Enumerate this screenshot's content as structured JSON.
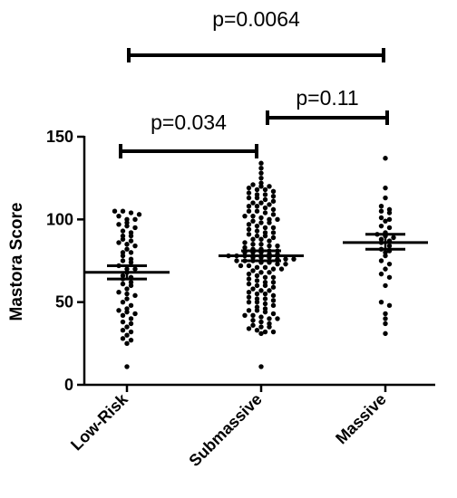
{
  "chart_data": {
    "type": "scatter",
    "ylabel": "Mastora Score",
    "ylim": [
      0,
      150
    ],
    "yticks": [
      0,
      50,
      100,
      150
    ],
    "categories": [
      "Low-Risk",
      "Submassive",
      "Massive"
    ],
    "groups": [
      {
        "name": "Low-Risk",
        "mean": 68,
        "sem_low": 64,
        "sem_high": 72,
        "values": [
          105,
          105,
          104,
          103,
          102,
          100,
          100,
          98,
          97,
          96,
          95,
          93,
          92,
          90,
          90,
          88,
          87,
          86,
          85,
          84,
          82,
          80,
          80,
          78,
          76,
          75,
          74,
          72,
          70,
          70,
          68,
          66,
          65,
          64,
          62,
          61,
          60,
          58,
          56,
          55,
          54,
          52,
          50,
          48,
          46,
          45,
          44,
          43,
          42,
          40,
          38,
          37,
          35,
          33,
          32,
          30,
          28,
          27,
          25,
          11
        ]
      },
      {
        "name": "Submassive",
        "mean": 78,
        "sem_low": 75,
        "sem_high": 81,
        "values": [
          134,
          131,
          128,
          125,
          122,
          121,
          120,
          120,
          119,
          118,
          118,
          117,
          116,
          115,
          115,
          114,
          113,
          113,
          112,
          111,
          110,
          110,
          109,
          108,
          108,
          107,
          106,
          105,
          105,
          104,
          103,
          102,
          102,
          101,
          100,
          100,
          99,
          98,
          98,
          97,
          96,
          95,
          95,
          94,
          93,
          92,
          92,
          91,
          90,
          90,
          89,
          88,
          88,
          87,
          86,
          85,
          85,
          84,
          84,
          83,
          82,
          82,
          81,
          81,
          80,
          80,
          80,
          79,
          79,
          78,
          78,
          78,
          77,
          77,
          77,
          76,
          76,
          76,
          75,
          75,
          75,
          74,
          74,
          73,
          73,
          72,
          72,
          71,
          71,
          70,
          70,
          69,
          68,
          68,
          67,
          66,
          65,
          65,
          64,
          63,
          62,
          62,
          61,
          60,
          60,
          59,
          58,
          57,
          57,
          56,
          55,
          55,
          54,
          53,
          52,
          52,
          51,
          50,
          50,
          49,
          48,
          47,
          46,
          45,
          45,
          44,
          43,
          42,
          42,
          41,
          40,
          40,
          39,
          38,
          37,
          36,
          35,
          35,
          34,
          33,
          32,
          32,
          31,
          11
        ]
      },
      {
        "name": "Massive",
        "mean": 86,
        "sem_low": 82,
        "sem_high": 91,
        "values": [
          137,
          119,
          113,
          108,
          106,
          105,
          104,
          101,
          100,
          99,
          96,
          95,
          92,
          91,
          90,
          89,
          88,
          87,
          86,
          84,
          82,
          81,
          80,
          78,
          75,
          73,
          70,
          67,
          65,
          60,
          50,
          48,
          43,
          40,
          37,
          31
        ]
      }
    ],
    "comparisons": [
      {
        "label": "p=0.0064",
        "from": "Low-Risk",
        "to": "Massive"
      },
      {
        "label": "p=0.11",
        "from": "Submassive",
        "to": "Massive"
      },
      {
        "label": "p=0.034",
        "from": "Low-Risk",
        "to": "Submassive"
      }
    ]
  }
}
